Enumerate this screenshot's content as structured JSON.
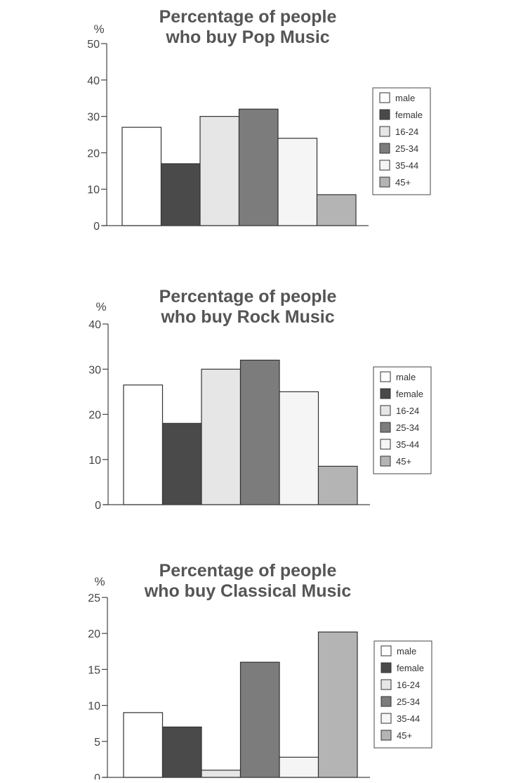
{
  "chart_data": [
    {
      "type": "bar",
      "title": "Percentage of people\nwho buy Pop Music",
      "ylabel": "%",
      "ylim": [
        0,
        50
      ],
      "yticks": [
        0,
        10,
        20,
        30,
        40,
        50
      ],
      "categories": [
        "male",
        "female",
        "16-24",
        "25-34",
        "35-44",
        "45+"
      ],
      "values": [
        27,
        17,
        30,
        32,
        24,
        8.5
      ],
      "legend": "right"
    },
    {
      "type": "bar",
      "title": "Percentage of people\nwho buy Rock Music",
      "ylabel": "%",
      "ylim": [
        0,
        40
      ],
      "yticks": [
        0,
        10,
        20,
        30,
        40
      ],
      "categories": [
        "male",
        "female",
        "16-24",
        "25-34",
        "35-44",
        "45+"
      ],
      "values": [
        26.5,
        18,
        30,
        32,
        25,
        8.5
      ],
      "legend": "right"
    },
    {
      "type": "bar",
      "title": "Percentage of people\nwho buy Classical Music",
      "ylabel": "%",
      "ylim": [
        0,
        25
      ],
      "yticks": [
        0,
        5,
        10,
        15,
        20,
        25
      ],
      "categories": [
        "male",
        "female",
        "16-24",
        "25-34",
        "35-44",
        "45+"
      ],
      "values": [
        9,
        7,
        1,
        16,
        2.8,
        20.2
      ],
      "legend": "right"
    }
  ],
  "colors": {
    "male": "#ffffff",
    "female": "#4a4a4a",
    "16-24": "#e6e6e6",
    "25-34": "#7c7c7c",
    "35-44": "#f5f5f5",
    "45+": "#b4b4b4",
    "title": "#555555",
    "axis": "#444444"
  }
}
